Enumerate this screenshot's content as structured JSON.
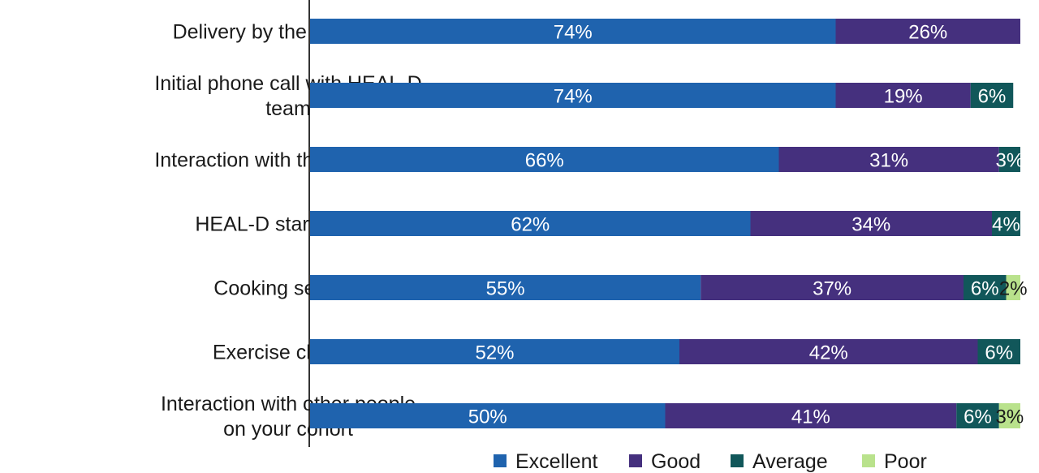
{
  "chart_data": {
    "type": "bar",
    "orientation": "horizontal",
    "stacked": true,
    "title": "",
    "xlabel": "",
    "ylabel": "",
    "xlim": [
      0,
      100
    ],
    "grid": false,
    "legend_position": "bottom",
    "categories": [
      [
        "Delivery by the facilitators"
      ],
      [
        "Initial phone call with HEAL-D",
        "team"
      ],
      [
        "Interaction with the facilitators"
      ],
      [
        "HEAL-D starter pack"
      ],
      [
        "Cooking session"
      ],
      [
        "Exercise classes"
      ],
      [
        "Interaction with other people",
        "on your cohort"
      ]
    ],
    "series": [
      {
        "name": "Excellent",
        "color": "#1f63ae",
        "values": [
          74,
          74,
          66,
          62,
          55,
          52,
          50
        ],
        "labels": [
          "74%",
          "74%",
          "66%",
          "62%",
          "55%",
          "52%",
          "50%"
        ]
      },
      {
        "name": "Good",
        "color": "#45307e",
        "values": [
          26,
          19,
          31,
          34,
          37,
          42,
          41
        ],
        "labels": [
          "26%",
          "19%",
          "31%",
          "34%",
          "37%",
          "42%",
          "41%"
        ]
      },
      {
        "name": "Average",
        "color": "#11575a",
        "values": [
          0,
          6,
          3,
          4,
          6,
          6,
          6
        ],
        "labels": [
          "",
          "6%",
          "3%",
          "4%",
          "6%",
          "6%",
          "6%"
        ]
      },
      {
        "name": "Poor",
        "color": "#b9e28c",
        "values": [
          0,
          0,
          0,
          0,
          2,
          0,
          3
        ],
        "labels": [
          "",
          "",
          "",
          "",
          "2%",
          "",
          "3%"
        ]
      }
    ]
  }
}
